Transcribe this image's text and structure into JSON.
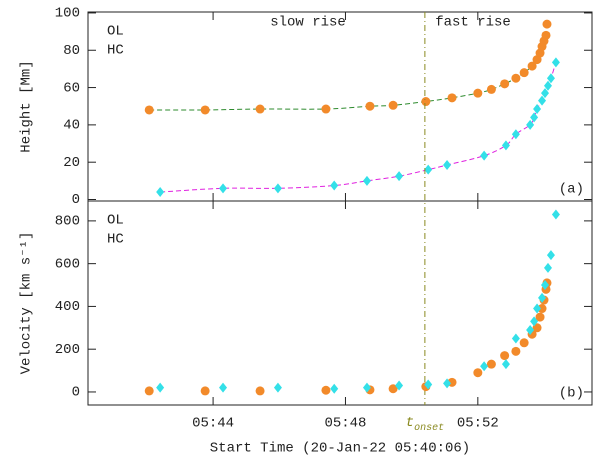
{
  "chart_data": [
    {
      "type": "scatter",
      "ylabel": "Height [Mm]",
      "panel_label": "(a)",
      "annotations": [
        "slow rise",
        "fast rise"
      ],
      "xlim": [
        0.22,
        15.45
      ],
      "ylim": [
        -0.8,
        100.5
      ],
      "yticks": [
        0,
        20,
        40,
        60,
        80,
        100
      ],
      "series": [
        {
          "name": "OL",
          "color": "#f28a2a",
          "marker": "circle",
          "fit_color": "#2e8b2e",
          "x": [
            2.07,
            3.76,
            5.42,
            7.41,
            8.74,
            9.44,
            10.43,
            11.22,
            12.0,
            12.41,
            12.81,
            13.15,
            13.4,
            13.64,
            13.79,
            13.88,
            13.94,
            14.0,
            14.06,
            14.09
          ],
          "values": [
            48,
            48,
            48.5,
            48.5,
            50,
            50.5,
            52.5,
            54.5,
            57,
            59,
            62,
            65,
            68,
            71.5,
            75,
            78.5,
            82,
            85,
            88,
            94
          ]
        },
        {
          "name": "HC",
          "color": "#33e0e8",
          "marker": "diamond",
          "fit_color": "#e020e0",
          "x": [
            2.4,
            4.3,
            5.96,
            7.66,
            8.65,
            9.62,
            10.5,
            11.07,
            12.19,
            12.85,
            13.15,
            13.58,
            13.7,
            13.79,
            13.94,
            14.03,
            14.12,
            14.21,
            14.36
          ],
          "values": [
            4,
            6,
            6,
            7.5,
            10,
            12.5,
            16,
            18.5,
            23.5,
            29,
            35,
            40,
            44,
            48.5,
            53,
            57,
            61,
            65,
            73.5
          ]
        }
      ]
    },
    {
      "type": "scatter",
      "ylabel": "Velocity [km s⁻¹]",
      "panel_label": "(b)",
      "xlabel": "Start Time (20-Jan-22 05:40:06)",
      "onset": {
        "x": 10.4,
        "text": "t",
        "subscript": "onset",
        "color": "#8a8a20"
      },
      "xlim": [
        0.22,
        15.45
      ],
      "ylim": [
        -61,
        893
      ],
      "yticks": [
        0,
        200,
        400,
        600,
        800
      ],
      "xticks": [
        {
          "value": 4,
          "label": "05:44"
        },
        {
          "value": 8,
          "label": "05:48"
        },
        {
          "value": 12,
          "label": "05:52"
        }
      ],
      "series": [
        {
          "name": "OL",
          "color": "#f28a2a",
          "marker": "circle",
          "x": [
            2.07,
            3.76,
            5.42,
            7.41,
            8.74,
            9.44,
            10.43,
            11.22,
            12.0,
            12.41,
            12.81,
            13.15,
            13.4,
            13.64,
            13.79,
            13.88,
            13.94,
            14.0,
            14.06,
            14.09
          ],
          "values": [
            5,
            5,
            5,
            8,
            10,
            15,
            25,
            45,
            90,
            130,
            170,
            190,
            230,
            270,
            300,
            350,
            390,
            430,
            480,
            510
          ]
        },
        {
          "name": "HC",
          "color": "#33e0e8",
          "marker": "diamond",
          "x": [
            2.4,
            4.3,
            5.96,
            7.66,
            8.65,
            9.62,
            10.5,
            11.07,
            12.19,
            12.85,
            13.15,
            13.58,
            13.7,
            13.79,
            13.94,
            14.03,
            14.12,
            14.21,
            14.36
          ],
          "values": [
            20,
            20,
            20,
            15,
            20,
            30,
            35,
            40,
            120,
            130,
            250,
            290,
            330,
            390,
            440,
            500,
            580,
            640,
            830
          ]
        }
      ]
    }
  ]
}
